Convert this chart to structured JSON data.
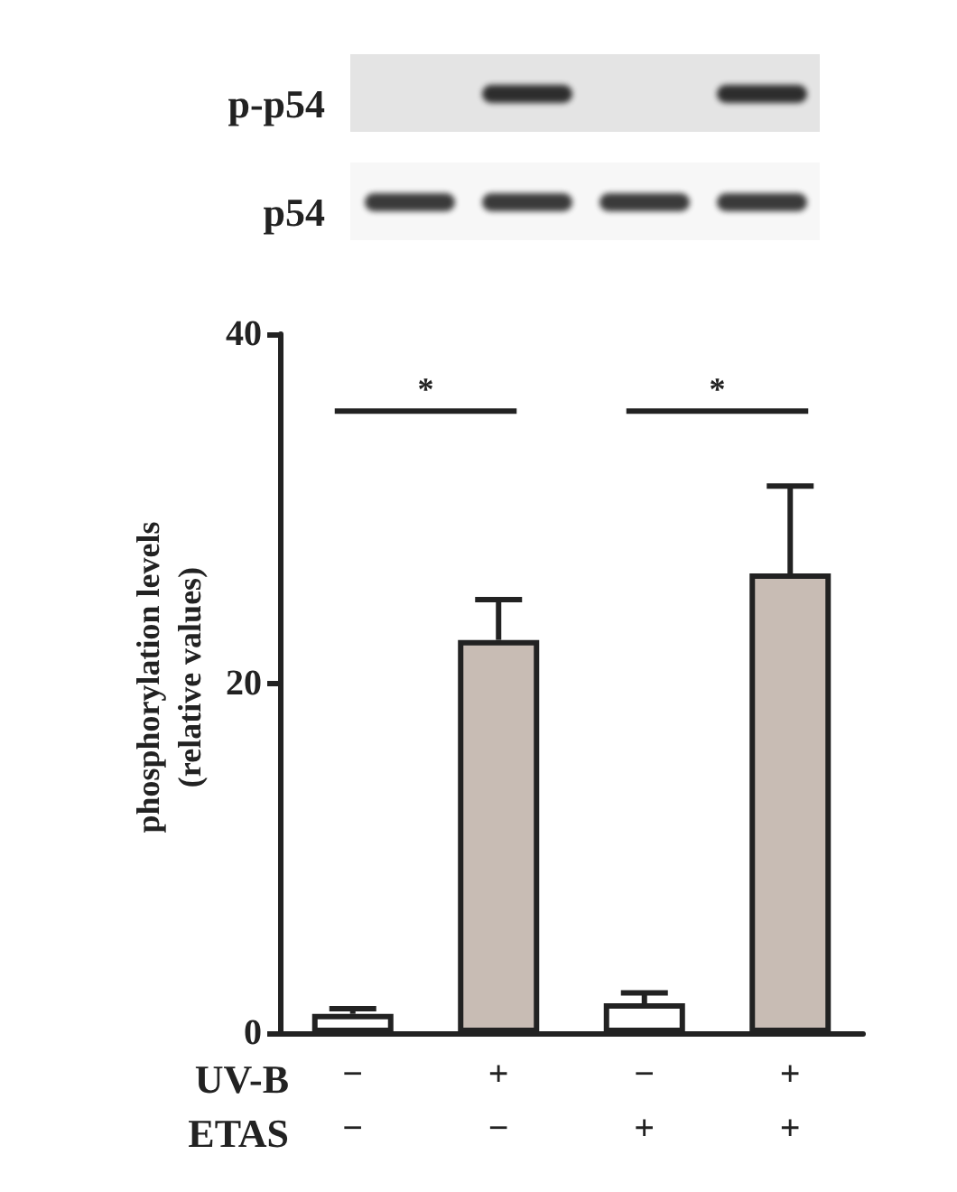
{
  "chart_data": {
    "type": "bar",
    "ylabel": "phosphorylation levels (relative values)",
    "categories": [
      "−\n−",
      "+\n−",
      "−\n+",
      "+\n+"
    ],
    "values": [
      1.1,
      22.5,
      1.7,
      26.3
    ],
    "colors": [
      "#ffffff",
      "#c8bcb4",
      "#ffffff",
      "#c8bcb4"
    ],
    "errors": [
      [
        1.1,
        1.4
      ],
      [
        22.5,
        24.8
      ],
      [
        1.7,
        2.3
      ],
      [
        26.3,
        31.3
      ]
    ],
    "ylim": [
      0,
      40
    ],
    "yticks": [
      0,
      20,
      40
    ],
    "grid": false,
    "annotations": [
      "p-p54",
      "p54",
      "UV-B",
      "ETAS",
      "*",
      "*"
    ]
  }
}
